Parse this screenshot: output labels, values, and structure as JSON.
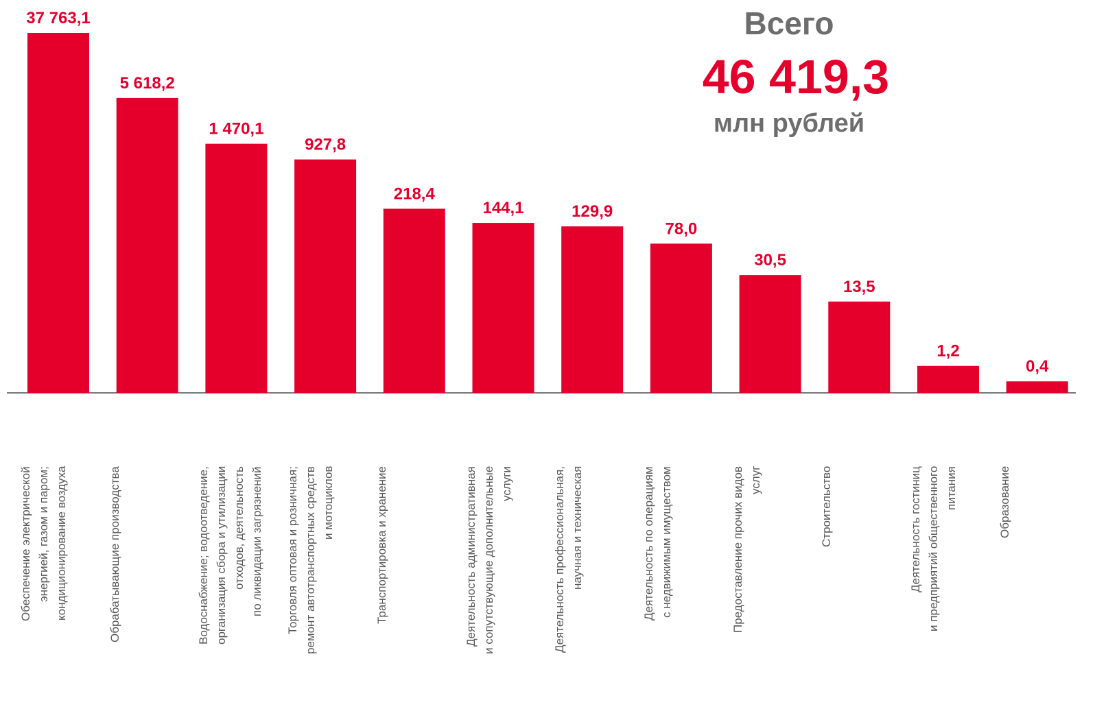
{
  "chart_data": {
    "type": "bar",
    "total_label": "Всего",
    "total": "46 419,3",
    "total_unit": "млн рублей",
    "categories": [
      "Обеспечение электрической\nэнергией, газом и паром;\nкондиционирование воздуха",
      "Обрабатывающие производства",
      "Водоснабжение; водоотведение,\nорганизация сбора и утилизации\nотходов, деятельность\nпо ликвидации загрязнений",
      "Торговля оптовая и розничная;\nремонт автотранспортных средств\nи мотоциклов",
      "Транспортировка и хранение",
      "Деятельность административная\nи сопутствующие дополнительные\nуслуги",
      "Деятельность профессиональная,\nнаучная и техническая",
      "Деятельность по операциям\nс недвижимым имуществом",
      "Предоставление прочих видов\nуслуг",
      "Строительство",
      "Деятельность гостиниц\nи предприятий общественного\nпитания",
      "Образование"
    ],
    "values": [
      37763.1,
      5618.2,
      1470.1,
      927.8,
      218.4,
      144.1,
      129.9,
      78.0,
      30.5,
      13.5,
      1.2,
      0.4
    ],
    "value_labels": [
      "37 763,1",
      "5 618,2",
      "1 470,1",
      "927,8",
      "218,4",
      "144,1",
      "129,9",
      "78,0",
      "30,5",
      "13,5",
      "1,2",
      "0,4"
    ],
    "color": "#e4002b",
    "log_scale": true
  }
}
